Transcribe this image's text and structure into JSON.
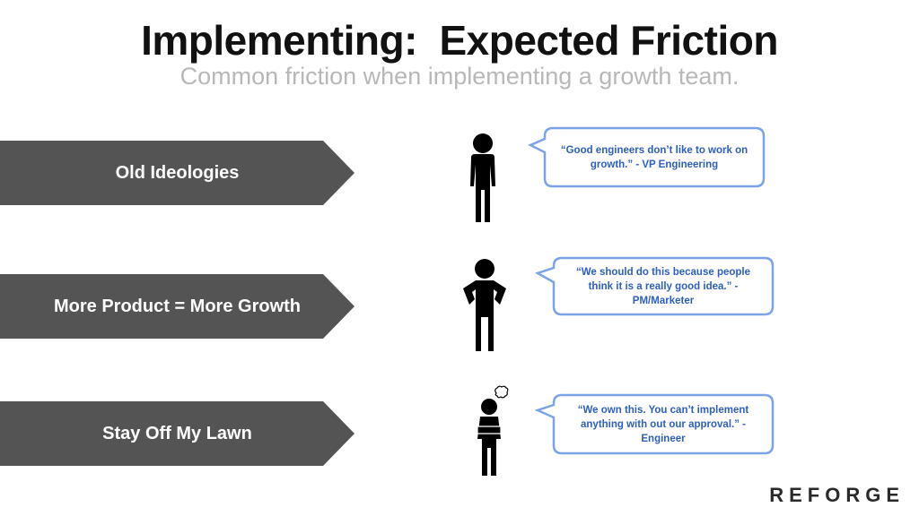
{
  "slide": {
    "title": "Implementing:  Expected Friction",
    "subtitle": "Common friction when implementing a growth team."
  },
  "rows": [
    {
      "arrow_label": "Old Ideologies",
      "quote": "“Good engineers don’t like to work on growth.”  -  VP Engineering",
      "figure_icon": "standing-person-icon"
    },
    {
      "arrow_label": "More Product = More Growth",
      "quote": "“We should do this because people think it is a really good idea.”  -  PM/Marketer",
      "figure_icon": "hands-on-hips-person-icon"
    },
    {
      "arrow_label": "Stay Off My Lawn",
      "quote": "“We own this.  You can’t implement anything with out our approval.”   - Engineer",
      "figure_icon": "arms-crossed-angry-person-icon"
    }
  ],
  "brand": {
    "logo": "REFORGE"
  },
  "colors": {
    "arrow": "#545454",
    "bubble_border": "#7aa3e8",
    "quote_text": "#2d5fbf",
    "subtitle": "#b8b8b8"
  }
}
